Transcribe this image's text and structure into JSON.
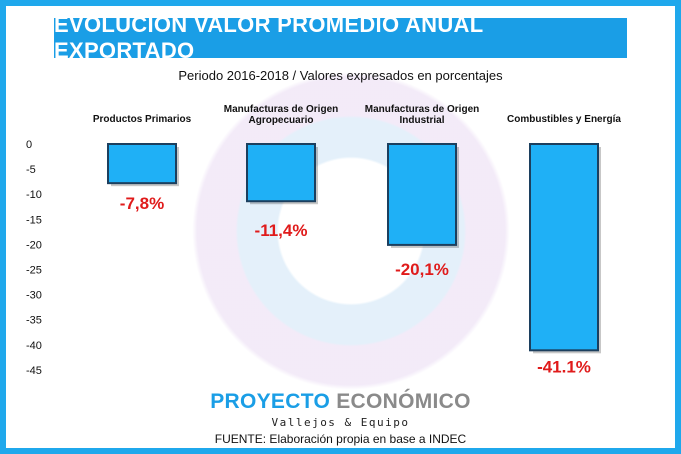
{
  "title": "EVOLUCIÓN VALOR PROMEDIO ANUAL EXPORTADO",
  "subtitle": "Periodo 2016-2018 / Valores expresados en porcentajes",
  "chart_data": {
    "type": "bar",
    "categories": [
      [
        "Productos Primarios"
      ],
      [
        "Manufacturas de Origen",
        "Agropecuario"
      ],
      [
        "Manufacturas de Origen",
        "Industrial"
      ],
      [
        "Combustibles y Energía"
      ]
    ],
    "values": [
      -7.8,
      -11.4,
      -20.1,
      -41.1
    ],
    "data_labels": [
      "-7,8%",
      "-11,4%",
      "-20,1%",
      "-41.1%"
    ],
    "yticks": [
      0,
      -5,
      -10,
      -15,
      -20,
      -25,
      -30,
      -35,
      -40,
      -45
    ],
    "ylim": [
      -45,
      0
    ],
    "grid": false,
    "colors": {
      "bar": "#1fb0f6",
      "bar_edge": "#1c3f5e",
      "label": "#e01b1b"
    }
  },
  "logo": {
    "part1": "PROYECTO ",
    "part2": "ECONÓMICO",
    "sub": "Vallejos & Equipo"
  },
  "source": "FUENTE: Elaboración propia en base a INDEC"
}
